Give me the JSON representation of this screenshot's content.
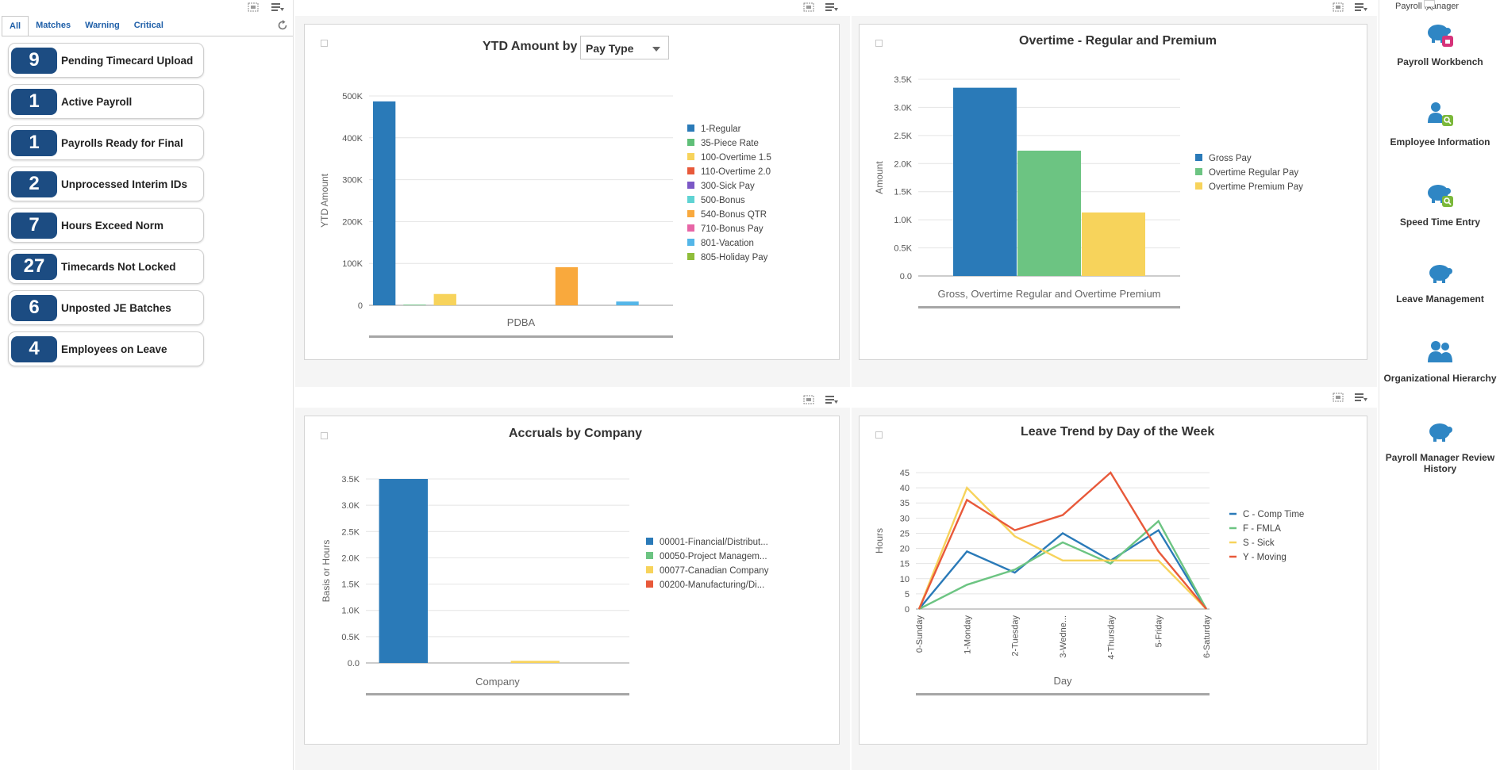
{
  "watchlist": {
    "tabs": [
      "All",
      "Matches",
      "Warning",
      "Critical"
    ],
    "items": [
      {
        "count": "9",
        "label": "Pending Timecard Upload"
      },
      {
        "count": "1",
        "label": "Active Payroll"
      },
      {
        "count": "1",
        "label": "Payrolls Ready for Final"
      },
      {
        "count": "2",
        "label": "Unprocessed Interim IDs"
      },
      {
        "count": "7",
        "label": "Hours Exceed Norm"
      },
      {
        "count": "27",
        "label": "Timecards Not Locked"
      },
      {
        "count": "6",
        "label": "Unposted JE Batches"
      },
      {
        "count": "4",
        "label": "Employees on Leave"
      }
    ]
  },
  "ytd": {
    "title": "YTD Amount by",
    "select_value": "Pay Type",
    "chart_data": {
      "type": "bar",
      "xlabel": "PDBA",
      "ylabel": "YTD Amount",
      "ylim": [
        0,
        500000
      ],
      "ticks": [
        "0",
        "100K",
        "200K",
        "300K",
        "400K",
        "500K"
      ],
      "tick_values": [
        0,
        100000,
        200000,
        300000,
        400000,
        500000
      ],
      "series": [
        {
          "name": "1-Regular",
          "value": 487000,
          "color": "#2a7ab8"
        },
        {
          "name": "35-Piece Rate",
          "value": 1500,
          "color": "#5fbf78"
        },
        {
          "name": "100-Overtime 1.5",
          "value": 27000,
          "color": "#f7d35b"
        },
        {
          "name": "110-Overtime 2.0",
          "value": 0,
          "color": "#e8593a"
        },
        {
          "name": "300-Sick Pay",
          "value": 0,
          "color": "#7b58c6"
        },
        {
          "name": "500-Bonus",
          "value": 0,
          "color": "#5fd3d3"
        },
        {
          "name": "540-Bonus QTR",
          "value": 91000,
          "color": "#f9a93d"
        },
        {
          "name": "710-Bonus Pay",
          "value": 0,
          "color": "#e765a6"
        },
        {
          "name": "801-Vacation",
          "value": 9000,
          "color": "#54b6e8"
        },
        {
          "name": "805-Holiday Pay",
          "value": 0,
          "color": "#8fbd3a"
        }
      ]
    }
  },
  "overtime": {
    "title": "Overtime - Regular and Premium",
    "chart_data": {
      "type": "bar",
      "xlabel": "Gross, Overtime Regular and Overtime Premium",
      "ylabel": "Amount",
      "ylim": [
        0,
        3500
      ],
      "ticks": [
        "0.0",
        "0.5K",
        "1.0K",
        "1.5K",
        "2.0K",
        "2.5K",
        "3.0K",
        "3.5K"
      ],
      "tick_values": [
        0,
        500,
        1000,
        1500,
        2000,
        2500,
        3000,
        3500
      ],
      "series": [
        {
          "name": "Gross Pay",
          "value": 3350,
          "color": "#2a7ab8"
        },
        {
          "name": "Overtime Regular Pay",
          "value": 2230,
          "color": "#6cc482"
        },
        {
          "name": "Overtime Premium Pay",
          "value": 1130,
          "color": "#f7d35b"
        }
      ]
    }
  },
  "accruals": {
    "title": "Accruals by Company",
    "chart_data": {
      "type": "bar",
      "xlabel": "Company",
      "ylabel": "Basis or Hours",
      "ylim": [
        0,
        3500
      ],
      "ticks": [
        "0.0",
        "0.5K",
        "1.0K",
        "1.5K",
        "2.0K",
        "2.5K",
        "3.0K",
        "3.5K"
      ],
      "tick_values": [
        0,
        500,
        1000,
        1500,
        2000,
        2500,
        3000,
        3500
      ],
      "series": [
        {
          "name": "00001-Financial/Distribut...",
          "value": 3500,
          "color": "#2a7ab8"
        },
        {
          "name": "00050-Project Managem...",
          "value": 0,
          "color": "#6cc482"
        },
        {
          "name": "00077-Canadian Company",
          "value": 40,
          "color": "#f7d35b"
        },
        {
          "name": "00200-Manufacturing/Di...",
          "value": 0,
          "color": "#e8593a"
        }
      ]
    }
  },
  "leave": {
    "title": "Leave Trend by Day of the Week",
    "chart_data": {
      "type": "line",
      "xlabel": "Day",
      "ylabel": "Hours",
      "ylim": [
        0,
        45
      ],
      "ticks": [
        "0",
        "5",
        "10",
        "15",
        "20",
        "25",
        "30",
        "35",
        "40",
        "45"
      ],
      "tick_values": [
        0,
        5,
        10,
        15,
        20,
        25,
        30,
        35,
        40,
        45
      ],
      "categories": [
        "0-Sunday",
        "1-Monday",
        "2-Tuesday",
        "3-Wedne...",
        "4-Thursday",
        "5-Friday",
        "6-Saturday"
      ],
      "series": [
        {
          "name": "C - Comp Time",
          "values": [
            0,
            19,
            12,
            25,
            16,
            26,
            0
          ],
          "color": "#2a7ab8"
        },
        {
          "name": "F - FMLA",
          "values": [
            0,
            8,
            13,
            22,
            15,
            29,
            0
          ],
          "color": "#6cc482"
        },
        {
          "name": "S - Sick",
          "values": [
            0,
            40,
            24,
            16,
            16,
            16,
            0
          ],
          "color": "#f7d35b"
        },
        {
          "name": "Y - Moving",
          "values": [
            0,
            36,
            26,
            31,
            45,
            19,
            0
          ],
          "color": "#e8593a"
        }
      ]
    }
  },
  "launchpad": {
    "header": "Payroll Manager",
    "items": [
      {
        "label": "Payroll Workbench",
        "badge": "#d6337a"
      },
      {
        "label": "Employee Information",
        "badge": "#7bb83a"
      },
      {
        "label": "Speed Time Entry",
        "badge": "#7bb83a"
      },
      {
        "label": "Leave Management",
        "badge": ""
      },
      {
        "label": "Organizational Hierarchy",
        "badge": ""
      },
      {
        "label": "Payroll Manager Review History",
        "badge": ""
      }
    ]
  }
}
